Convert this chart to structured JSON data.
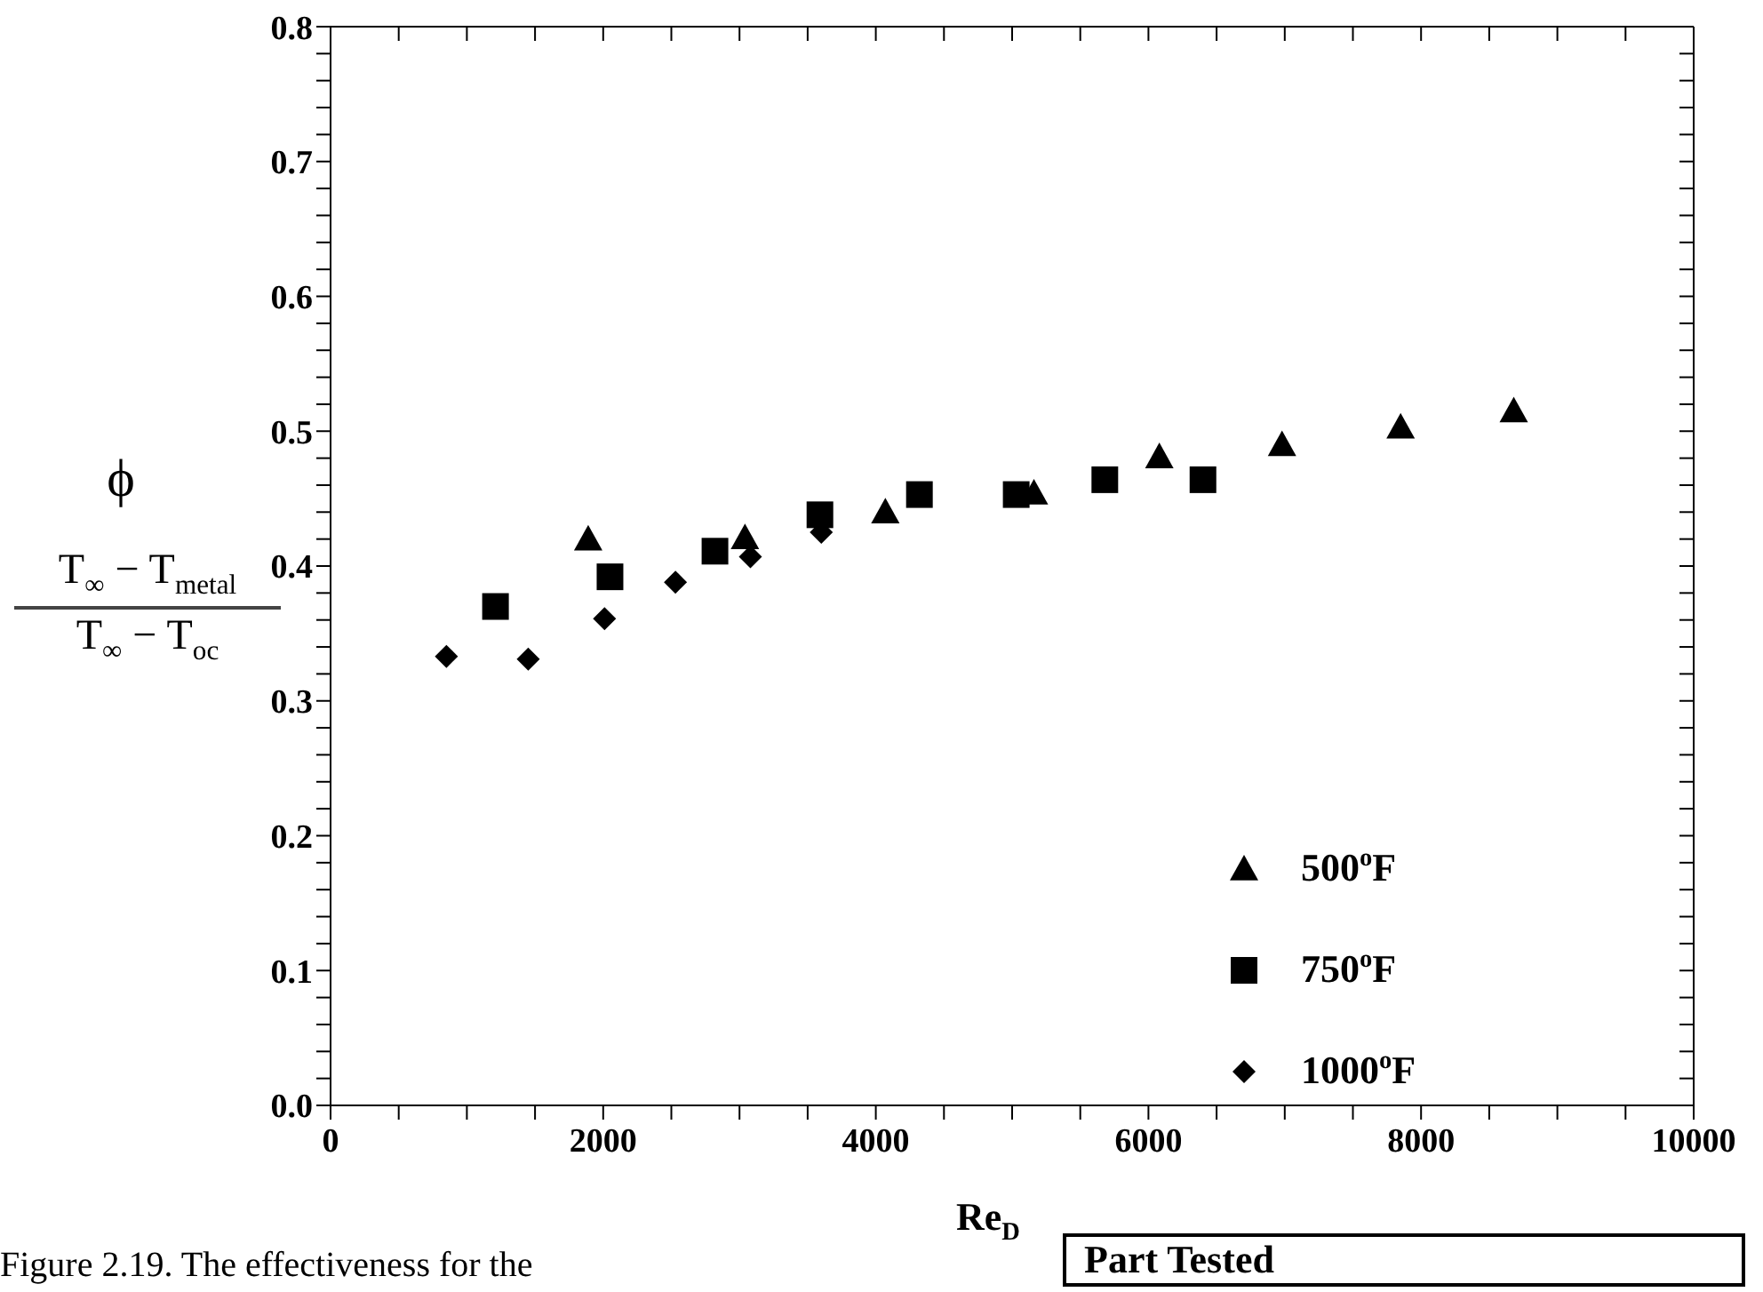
{
  "chart_data": {
    "type": "scatter",
    "xlabel": "Re$_{D}$",
    "ylabel": "ϕ",
    "annotations": [
      "T$_{∞}$ − T$_{metal}$",
      "T$_{∞}$ − T$_{oc}$",
      "Figure 2.19. The effectiveness for the",
      "Part Tested"
    ],
    "xlim": [
      0,
      10000
    ],
    "ylim": [
      0,
      0.8
    ],
    "xticks": [
      0,
      {
        "value": 500,
        "label": null
      },
      {
        "value": 1000,
        "label": null
      },
      {
        "value": 1500,
        "label": null
      },
      2000,
      {
        "value": 2500,
        "label": null
      },
      {
        "value": 3000,
        "label": null
      },
      {
        "value": 3500,
        "label": null
      },
      4000,
      {
        "value": 4500,
        "label": null
      },
      {
        "value": 5000,
        "label": null
      },
      {
        "value": 5500,
        "label": null
      },
      6000,
      {
        "value": 6500,
        "label": null
      },
      {
        "value": 7000,
        "label": null
      },
      {
        "value": 7500,
        "label": null
      },
      8000,
      {
        "value": 8500,
        "label": null
      },
      {
        "value": 9000,
        "label": null
      },
      {
        "value": 9500,
        "label": null
      },
      10000
    ],
    "yticks": [
      {
        "value": 0,
        "label": "0.0"
      },
      {
        "value": 0.02,
        "label": null
      },
      {
        "value": 0.04,
        "label": null
      },
      {
        "value": 0.06,
        "label": null
      },
      {
        "value": 0.08,
        "label": null
      },
      {
        "value": 0.1,
        "label": "0.1"
      },
      {
        "value": 0.12,
        "label": null
      },
      {
        "value": 0.14,
        "label": null
      },
      {
        "value": 0.16,
        "label": null
      },
      {
        "value": 0.18,
        "label": null
      },
      {
        "value": 0.2,
        "label": "0.2"
      },
      {
        "value": 0.22,
        "label": null
      },
      {
        "value": 0.24,
        "label": null
      },
      {
        "value": 0.26,
        "label": null
      },
      {
        "value": 0.28,
        "label": null
      },
      {
        "value": 0.3,
        "label": "0.3"
      },
      {
        "value": 0.32,
        "label": null
      },
      {
        "value": 0.34,
        "label": null
      },
      {
        "value": 0.36,
        "label": null
      },
      {
        "value": 0.38,
        "label": null
      },
      {
        "value": 0.4,
        "label": "0.4"
      },
      {
        "value": 0.42,
        "label": null
      },
      {
        "value": 0.44,
        "label": null
      },
      {
        "value": 0.46,
        "label": null
      },
      {
        "value": 0.48,
        "label": null
      },
      {
        "value": 0.5,
        "label": "0.5"
      },
      {
        "value": 0.52,
        "label": null
      },
      {
        "value": 0.54,
        "label": null
      },
      {
        "value": 0.56,
        "label": null
      },
      {
        "value": 0.58,
        "label": null
      },
      {
        "value": 0.6,
        "label": "0.6"
      },
      {
        "value": 0.62,
        "label": null
      },
      {
        "value": 0.64,
        "label": null
      },
      {
        "value": 0.66,
        "label": null
      },
      {
        "value": 0.68,
        "label": null
      },
      {
        "value": 0.7,
        "label": "0.7"
      },
      {
        "value": 0.72,
        "label": null
      },
      {
        "value": 0.74,
        "label": null
      },
      {
        "value": 0.76,
        "label": null
      },
      {
        "value": 0.78,
        "label": null
      },
      {
        "value": 0.8,
        "label": "0.8"
      }
    ],
    "grid": false,
    "legend": "bottom right",
    "series": [
      {
        "name": "500$^{o}$F",
        "color": "#000000",
        "marker": "triangle",
        "x": [
          1890,
          3040,
          4070,
          5160,
          6080,
          6980,
          7850,
          8680
        ],
        "values": [
          0.42,
          0.421,
          0.44,
          0.454,
          0.481,
          0.49,
          0.503,
          0.515
        ]
      },
      {
        "name": "750$^{o}$F",
        "color": "#000000",
        "marker": "square",
        "x": [
          1210,
          2050,
          2820,
          3590,
          4320,
          5030,
          5680,
          6400
        ],
        "values": [
          0.37,
          0.392,
          0.411,
          0.438,
          0.453,
          0.453,
          0.464,
          0.464
        ]
      },
      {
        "name": "1000$^{o}$F",
        "color": "#000000",
        "marker": "diamond",
        "x": [
          850,
          1450,
          2010,
          2530,
          3080,
          3600
        ],
        "values": [
          0.333,
          0.331,
          0.361,
          0.388,
          0.407,
          0.425
        ]
      }
    ]
  }
}
